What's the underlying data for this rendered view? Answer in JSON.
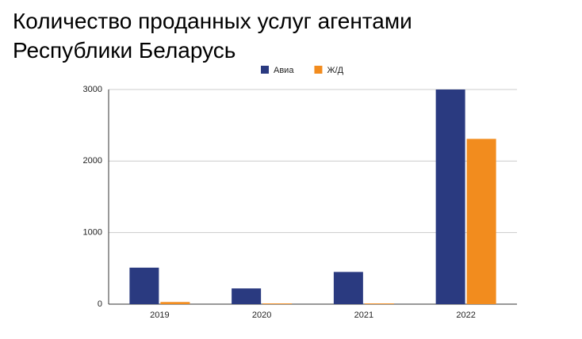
{
  "chart_data": {
    "type": "bar",
    "title": "Количество проданных услуг агентами Республики Беларусь",
    "categories": [
      "2019",
      "2020",
      "2021",
      "2022"
    ],
    "series": [
      {
        "name": "Авиа",
        "color": "#2a3a80",
        "values": [
          510,
          220,
          450,
          3000
        ]
      },
      {
        "name": "Ж/Д",
        "color": "#f28c1e",
        "values": [
          30,
          10,
          10,
          2310
        ]
      }
    ],
    "ylim": [
      0,
      3000
    ],
    "yticks": [
      0,
      1000,
      2000,
      3000
    ],
    "grid": true,
    "legend": "top"
  }
}
